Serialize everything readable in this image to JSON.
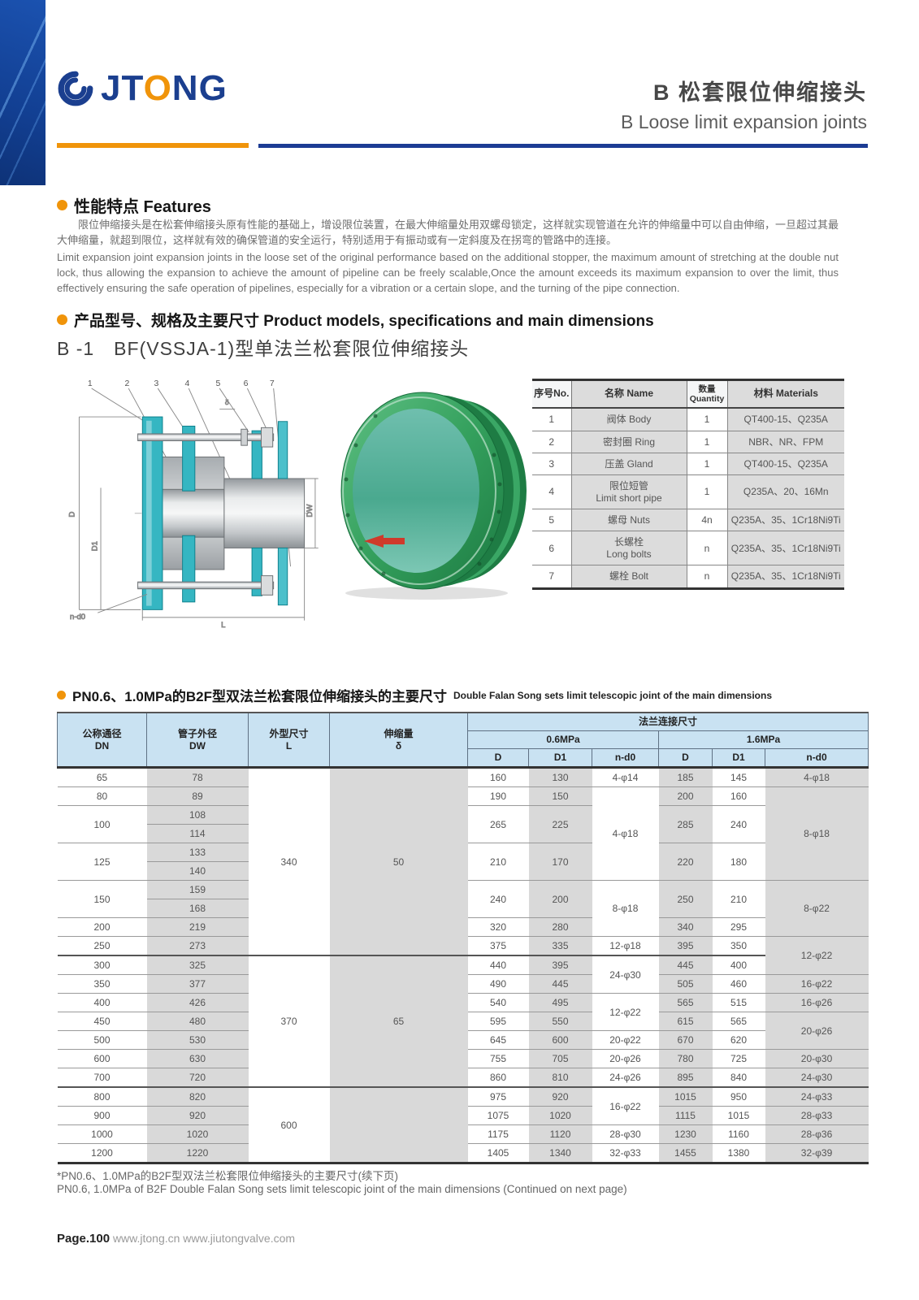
{
  "header": {
    "brand_jt": "JT",
    "brand_o": "O",
    "brand_ng": "NG",
    "title_zh": "B 松套限位伸缩接头",
    "title_en": "B Loose limit expansion joints"
  },
  "features": {
    "heading": "性能特点 Features",
    "para_zh": "限位伸缩接头是在松套伸缩接头原有性能的基础上，增设限位装置，在最大伸缩量处用双螺母锁定，这样就实现管道在允许的伸缩量中可以自由伸缩，一旦超过其最大伸缩量，就超到限位，这样就有效的确保管道的安全运行，特别适用于有振动或有一定斜度及在拐弯的管路中的连接。",
    "para_en": "Limit expansion joint expansion joints in the loose set of the original performance based on the additional stopper, the maximum amount of stretching at the double nut lock, thus allowing the expansion to achieve the amount of pipeline can be freely scalable,Once the amount exceeds its maximum expansion to over the limit, thus effectively ensuring the safe operation of pipelines, especially for a vibration or a certain slope, and the turning of the pipe connection.",
    "models_heading": "产品型号、规格及主要尺寸 Product models, specifications and main dimensions",
    "model_line": "B -1　BF(VSSJA-1)型单法兰松套限位伸缩接头"
  },
  "drawing": {
    "callouts": [
      "1",
      "2",
      "3",
      "4",
      "5",
      "6",
      "7"
    ],
    "dim_D": "D",
    "dim_D1": "D1",
    "dim_DW": "DW",
    "dim_L": "L",
    "dim_nd0": "n-d0",
    "dim_delta": "δ"
  },
  "parts_table": {
    "headers": [
      "序号No.",
      "名称 Name",
      "数量\nQuantity",
      "材料 Materials"
    ],
    "rows": [
      {
        "no": "1",
        "name": "阀体 Body",
        "qty": "1",
        "mat": "QT400-15、Q235A"
      },
      {
        "no": "2",
        "name": "密封圈 Ring",
        "qty": "1",
        "mat": "NBR、NR、FPM"
      },
      {
        "no": "3",
        "name": "压盖 Gland",
        "qty": "1",
        "mat": "QT400-15、Q235A"
      },
      {
        "no": "4",
        "name": "限位短管\nLimit short pipe",
        "qty": "1",
        "mat": "Q235A、20、16Mn"
      },
      {
        "no": "5",
        "name": "螺母 Nuts",
        "qty": "4n",
        "mat": "Q235A、35、1Cr18Ni9Ti"
      },
      {
        "no": "6",
        "name": "长螺栓\nLong bolts",
        "qty": "n",
        "mat": "Q235A、35、1Cr18Ni9Ti"
      },
      {
        "no": "7",
        "name": "螺栓 Bolt",
        "qty": "n",
        "mat": "Q235A、35、1Cr18Ni9Ti"
      }
    ]
  },
  "dim_table": {
    "heading_zh": "PN0.6、1.0MPa的B2F型双法兰松套限位伸缩接头的主要尺寸",
    "heading_en": "Double Falan Song sets limit telescopic joint of the main dimensions",
    "header": {
      "dn": "公称通径\nDN",
      "dw": "管子外径\nDW",
      "l": "外型尺寸\nL",
      "delta": "伸缩量\nδ",
      "flange": "法兰连接尺寸",
      "p06": "0.6MPa",
      "p16": "1.6MPa",
      "d": "D",
      "d1": "D1",
      "nd0": "n-d0"
    },
    "rows": [
      {
        "c": [
          {
            "v": "65"
          },
          {
            "v": "78",
            "g": 1
          },
          {
            "v": "340",
            "rs": 10
          },
          {
            "v": "50",
            "rs": 10,
            "g": 1
          },
          {
            "v": "160"
          },
          {
            "v": "130",
            "g": 1
          },
          {
            "v": "4-φ14"
          },
          {
            "v": "185",
            "g": 1
          },
          {
            "v": "145"
          },
          {
            "v": "4-φ18",
            "g": 1
          }
        ]
      },
      {
        "c": [
          {
            "v": "80"
          },
          {
            "v": "89",
            "g": 1
          },
          {
            "v": "190"
          },
          {
            "v": "150",
            "g": 1
          },
          {
            "v": "4-φ18",
            "rs": 5
          },
          {
            "v": "200",
            "g": 1
          },
          {
            "v": "160"
          },
          {
            "v": "8-φ18",
            "rs": 5,
            "g": 1
          }
        ]
      },
      {
        "c": [
          {
            "v": "100",
            "rs": 2
          },
          {
            "v": "108",
            "g": 1
          },
          {
            "v": "265",
            "rs": 2
          },
          {
            "v": "225",
            "rs": 2,
            "g": 1
          },
          {
            "v": "285",
            "rs": 2,
            "g": 1
          },
          {
            "v": "240",
            "rs": 2
          }
        ]
      },
      {
        "c": [
          {
            "v": "114",
            "g": 1
          }
        ]
      },
      {
        "c": [
          {
            "v": "125",
            "rs": 2
          },
          {
            "v": "133",
            "g": 1
          },
          {
            "v": "210",
            "rs": 2
          },
          {
            "v": "170",
            "rs": 2,
            "g": 1
          },
          {
            "v": "220",
            "rs": 2,
            "g": 1
          },
          {
            "v": "180",
            "rs": 2
          }
        ]
      },
      {
        "c": [
          {
            "v": "140",
            "g": 1
          }
        ]
      },
      {
        "c": [
          {
            "v": "150",
            "rs": 2
          },
          {
            "v": "159",
            "g": 1
          },
          {
            "v": "240",
            "rs": 2
          },
          {
            "v": "200",
            "rs": 2,
            "g": 1
          },
          {
            "v": "8-φ18",
            "rs": 3
          },
          {
            "v": "250",
            "rs": 2,
            "g": 1
          },
          {
            "v": "210",
            "rs": 2
          },
          {
            "v": "8-φ22",
            "rs": 3,
            "g": 1
          }
        ]
      },
      {
        "c": [
          {
            "v": "168",
            "g": 1
          }
        ]
      },
      {
        "c": [
          {
            "v": "200"
          },
          {
            "v": "219",
            "g": 1
          },
          {
            "v": "320"
          },
          {
            "v": "280",
            "g": 1
          },
          {
            "v": "340",
            "g": 1
          },
          {
            "v": "295"
          }
        ]
      },
      {
        "c": [
          {
            "v": "250"
          },
          {
            "v": "273",
            "g": 1
          },
          {
            "v": "375"
          },
          {
            "v": "335",
            "g": 1
          },
          {
            "v": "12-φ18"
          },
          {
            "v": "395",
            "g": 1
          },
          {
            "v": "350"
          },
          {
            "v": "12-φ22",
            "rs": 2,
            "g": 1
          }
        ]
      },
      {
        "hr": 1,
        "c": [
          {
            "v": "300"
          },
          {
            "v": "325",
            "g": 1
          },
          {
            "v": "370",
            "rs": 7
          },
          {
            "v": "65",
            "rs": 7,
            "g": 1
          },
          {
            "v": "440"
          },
          {
            "v": "395",
            "g": 1
          },
          {
            "v": "24-φ30",
            "rs": 2
          },
          {
            "v": "445",
            "g": 1
          },
          {
            "v": "400"
          }
        ]
      },
      {
        "c": [
          {
            "v": "350"
          },
          {
            "v": "377",
            "g": 1
          },
          {
            "v": "490"
          },
          {
            "v": "445",
            "g": 1
          },
          {
            "v": "505",
            "g": 1
          },
          {
            "v": "460"
          },
          {
            "v": "16-φ22",
            "g": 1
          }
        ]
      },
      {
        "c": [
          {
            "v": "400"
          },
          {
            "v": "426",
            "g": 1
          },
          {
            "v": "540"
          },
          {
            "v": "495",
            "g": 1
          },
          {
            "v": "12-φ22",
            "rs": 2
          },
          {
            "v": "565",
            "g": 1
          },
          {
            "v": "515"
          },
          {
            "v": "16-φ26",
            "g": 1
          }
        ]
      },
      {
        "c": [
          {
            "v": "450"
          },
          {
            "v": "480",
            "g": 1
          },
          {
            "v": "595"
          },
          {
            "v": "550",
            "g": 1
          },
          {
            "v": "615",
            "g": 1
          },
          {
            "v": "565"
          },
          {
            "v": "20-φ26",
            "rs": 2,
            "g": 1
          }
        ]
      },
      {
        "c": [
          {
            "v": "500"
          },
          {
            "v": "530",
            "g": 1
          },
          {
            "v": "645"
          },
          {
            "v": "600",
            "g": 1
          },
          {
            "v": "20-φ22"
          },
          {
            "v": "670",
            "g": 1
          },
          {
            "v": "620"
          }
        ]
      },
      {
        "c": [
          {
            "v": "600"
          },
          {
            "v": "630",
            "g": 1
          },
          {
            "v": "755"
          },
          {
            "v": "705",
            "g": 1
          },
          {
            "v": "20-φ26"
          },
          {
            "v": "780",
            "g": 1
          },
          {
            "v": "725"
          },
          {
            "v": "20-φ30",
            "g": 1
          }
        ]
      },
      {
        "c": [
          {
            "v": "700"
          },
          {
            "v": "720",
            "g": 1
          },
          {
            "v": "860"
          },
          {
            "v": "810",
            "g": 1
          },
          {
            "v": "24-φ26"
          },
          {
            "v": "895",
            "g": 1
          },
          {
            "v": "840"
          },
          {
            "v": "24-φ30",
            "g": 1
          }
        ]
      },
      {
        "hr": 1,
        "c": [
          {
            "v": "800"
          },
          {
            "v": "820",
            "g": 1
          },
          {
            "v": "600",
            "rs": 4
          },
          {
            "v": "",
            "rs": 4,
            "g": 1
          },
          {
            "v": "975"
          },
          {
            "v": "920",
            "g": 1
          },
          {
            "v": "16-φ22",
            "rs": 2
          },
          {
            "v": "1015",
            "g": 1
          },
          {
            "v": "950"
          },
          {
            "v": "24-φ33",
            "g": 1
          }
        ]
      },
      {
        "c": [
          {
            "v": "900"
          },
          {
            "v": "920",
            "g": 1
          },
          {
            "v": "1075"
          },
          {
            "v": "1020",
            "g": 1
          },
          {
            "v": "1115",
            "g": 1
          },
          {
            "v": "1015"
          },
          {
            "v": "28-φ33",
            "g": 1
          }
        ]
      },
      {
        "c": [
          {
            "v": "1000"
          },
          {
            "v": "1020",
            "g": 1
          },
          {
            "v": "1175"
          },
          {
            "v": "1120",
            "g": 1
          },
          {
            "v": "28-φ30"
          },
          {
            "v": "1230",
            "g": 1
          },
          {
            "v": "1160"
          },
          {
            "v": "28-φ36",
            "g": 1
          }
        ]
      },
      {
        "c": [
          {
            "v": "1200"
          },
          {
            "v": "1220",
            "g": 1
          },
          {
            "v": "1405"
          },
          {
            "v": "1340",
            "g": 1
          },
          {
            "v": "32-φ33"
          },
          {
            "v": "1455",
            "g": 1
          },
          {
            "v": "1380"
          },
          {
            "v": "32-φ39",
            "g": 1
          }
        ]
      }
    ]
  },
  "notes": {
    "zh": "*PN0.6、1.0MPa的B2F型双法兰松套限位伸缩接头的主要尺寸(续下页)",
    "en": "PN0.6, 1.0MPa of B2F Double Falan Song sets limit telescopic joint of the main dimensions (Continued on next page)"
  },
  "footer": {
    "page": "Page.100",
    "urls": "www.jtong.cn  www.jiutongvalve.com"
  }
}
